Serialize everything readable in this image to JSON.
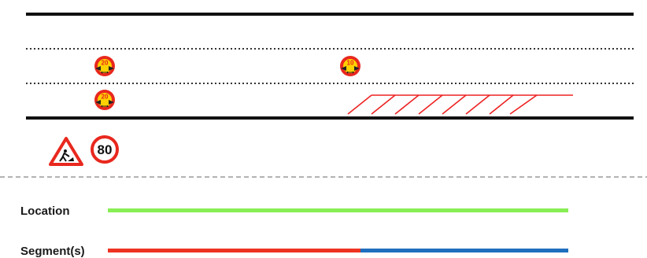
{
  "diagram": {
    "road": {
      "edge_color": "#111111",
      "lane_divider_color": "#333333",
      "lanes": [
        {
          "lane": 1,
          "signs": [
            {
              "icon": "minimum-distance-sign-icon",
              "value": "20"
            },
            {
              "icon": "minimum-distance-sign-icon",
              "value": "10"
            }
          ]
        },
        {
          "lane": 2,
          "signs": [
            {
              "icon": "minimum-distance-sign-icon",
              "value": "20"
            }
          ],
          "closure": {
            "icon": "lane-closure-hatching-icon",
            "color": "#ee2222"
          }
        }
      ]
    },
    "roadside_signs": [
      {
        "icon": "roadworks-warning-sign-icon"
      },
      {
        "icon": "speed-limit-sign-icon",
        "value": "80"
      }
    ],
    "separator_color": "#999999",
    "sign_colors": {
      "disc": "#ffd100",
      "ring": "#e8281e",
      "text": "#e8281e",
      "arrows": "#222222"
    }
  },
  "legend": {
    "location": {
      "label": "Location",
      "color": "#88ee55"
    },
    "segments": {
      "label": "Segment(s)",
      "parts": [
        {
          "color": "#ee3322"
        },
        {
          "color": "#1f6fbf"
        }
      ]
    }
  }
}
